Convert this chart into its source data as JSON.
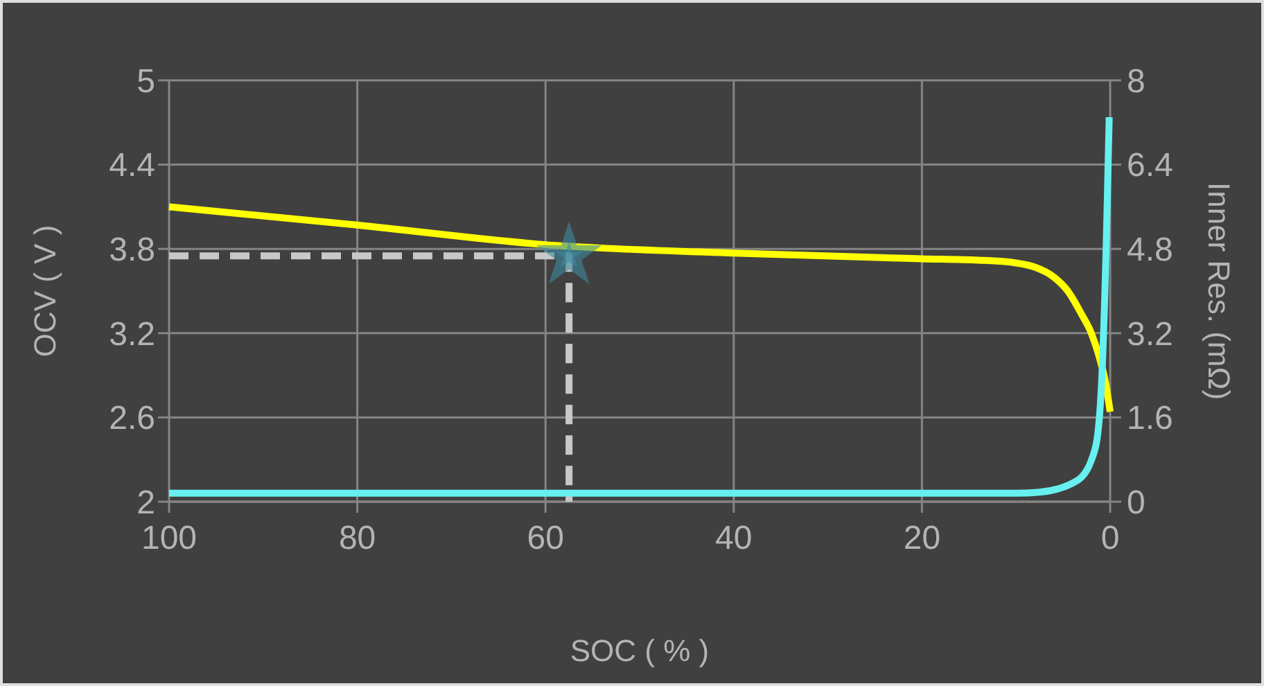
{
  "chart_data": {
    "type": "line",
    "xlabel": "SOC ( % )",
    "ylabel": "OCV ( V )",
    "y2label": "Inner Res. (mΩ)",
    "xlim": [
      100,
      0
    ],
    "xticks": [
      100,
      80,
      60,
      40,
      20,
      0
    ],
    "ylim": [
      2,
      5
    ],
    "yticks": [
      2,
      2.6,
      3.2,
      3.8,
      4.4,
      5
    ],
    "y2lim": [
      0,
      8
    ],
    "y2ticks": [
      0,
      1.6,
      3.2,
      4.8,
      6.4,
      8
    ],
    "grid": true,
    "series": [
      {
        "color": "#ffff00",
        "x": [
          100,
          80,
          60,
          40,
          20,
          14,
          10,
          8,
          6,
          4.5,
          3,
          2,
          1.2,
          0.5,
          0
        ],
        "values": [
          4.1,
          3.97,
          3.83,
          3.77,
          3.73,
          3.72,
          3.7,
          3.67,
          3.6,
          3.5,
          3.33,
          3.2,
          3.04,
          2.85,
          2.64
        ]
      },
      {
        "axis": "y2",
        "color": "#66f0f0",
        "x": [
          100,
          50,
          10,
          7.5,
          3.5,
          1.6,
          0.9,
          0.4,
          0.1
        ],
        "values": [
          0.16,
          0.16,
          0.16,
          0.18,
          0.4,
          1.0,
          2.3,
          5.0,
          7.3
        ]
      },
      {
        "color": "#c8c8c8",
        "line_style": "dashed",
        "x": [
          100,
          57.5,
          57.5
        ],
        "values": [
          3.75,
          3.75,
          2
        ]
      },
      {
        "type": "scatter",
        "marker": "star",
        "color": "#3d8aa0",
        "x": [
          57.5
        ],
        "values": [
          3.75
        ]
      }
    ]
  }
}
